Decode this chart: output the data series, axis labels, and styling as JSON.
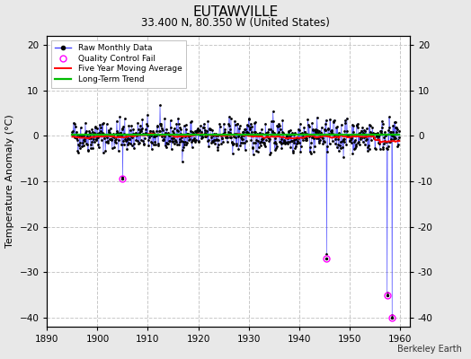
{
  "title": "EUTAWVILLE",
  "subtitle": "33.400 N, 80.350 W (United States)",
  "ylabel": "Temperature Anomaly (°C)",
  "xlabel_credit": "Berkeley Earth",
  "xlim": [
    1890,
    1962
  ],
  "ylim": [
    -42,
    22
  ],
  "yticks": [
    -40,
    -30,
    -20,
    -10,
    0,
    10,
    20
  ],
  "xticks": [
    1890,
    1900,
    1910,
    1920,
    1930,
    1940,
    1950,
    1960
  ],
  "bg_color": "#e8e8e8",
  "plot_bg_color": "#ffffff",
  "grid_color": "#c8c8c8",
  "line_color_raw": "#4444ff",
  "line_color_ma": "#ff0000",
  "line_color_trend": "#00bb00",
  "marker_color": "#000000",
  "qc_color": "#ff00ff",
  "seed": 42,
  "n_months": 780,
  "start_year": 1895,
  "anomaly_std": 2.5,
  "ma_window": 60,
  "qc_points": [
    [
      1905.0,
      -9.5
    ],
    [
      1945.5,
      -27.0
    ],
    [
      1957.5,
      -35.0
    ],
    [
      1958.5,
      -40.0
    ]
  ],
  "spike_years": [
    1905.0,
    1945.5,
    1957.5,
    1958.5
  ],
  "spike_values": [
    -9.0,
    -26.0,
    -34.5,
    -39.5
  ]
}
